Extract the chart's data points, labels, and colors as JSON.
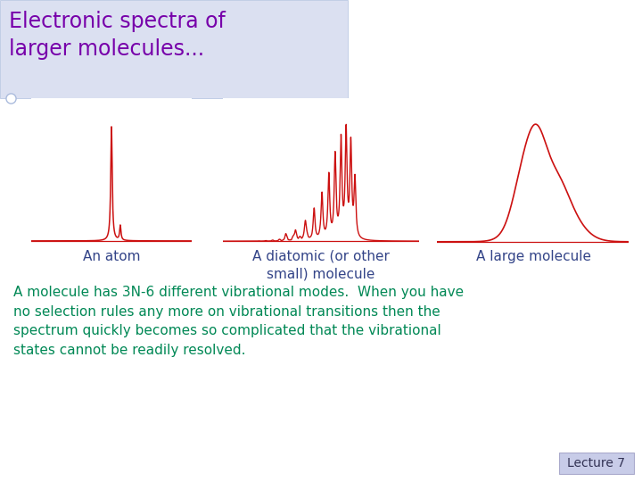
{
  "title": "Electronic spectra of\nlarger molecules...",
  "title_color": "#7700aa",
  "title_bg": "#d8ddf0",
  "bg_color": "#ffffff",
  "spectrum_color": "#cc1111",
  "label_color": "#334488",
  "body_text_color": "#008855",
  "label1": "An atom",
  "label2": "A diatomic (or other\nsmall) molecule",
  "label3": "A large molecule",
  "body_text": "A molecule has 3N-6 different vibrational modes.  When you have\nno selection rules any more on vibrational transitions then the\nspectrum quickly becomes so complicated that the vibrational\nstates cannot be readily resolved.",
  "lecture_text": "Lecture 7",
  "lecture_bg": "#c8cce8"
}
